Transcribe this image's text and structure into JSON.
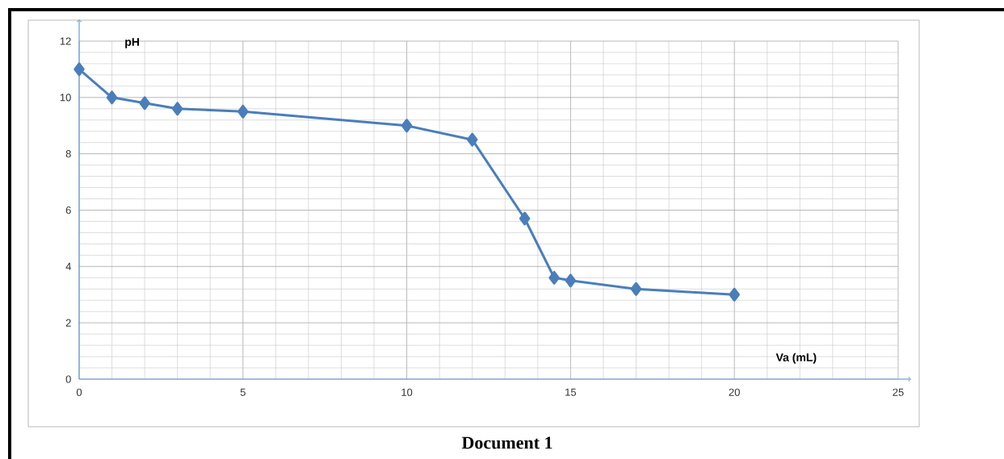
{
  "chart_data": {
    "type": "line",
    "xlabel": "Va (mL)",
    "ylabel": "pH",
    "annotations": [
      "Document 1"
    ],
    "x": [
      0,
      1,
      2,
      3,
      5,
      10,
      12,
      13.6,
      14.5,
      15,
      17,
      20
    ],
    "series": [
      {
        "color": "#4a7ebb",
        "values": [
          11,
          10,
          9.8,
          9.6,
          9.5,
          9.0,
          8.5,
          5.7,
          3.6,
          3.5,
          3.2,
          3.0
        ]
      }
    ],
    "xlim": [
      0,
      25
    ],
    "xticks": [
      0,
      5,
      10,
      15,
      20,
      25
    ],
    "ylim": [
      0,
      12
    ],
    "yticks": [
      0,
      2,
      4,
      6,
      8,
      10,
      12
    ],
    "grid": true,
    "marker": "diamond",
    "line_style": "solid"
  }
}
